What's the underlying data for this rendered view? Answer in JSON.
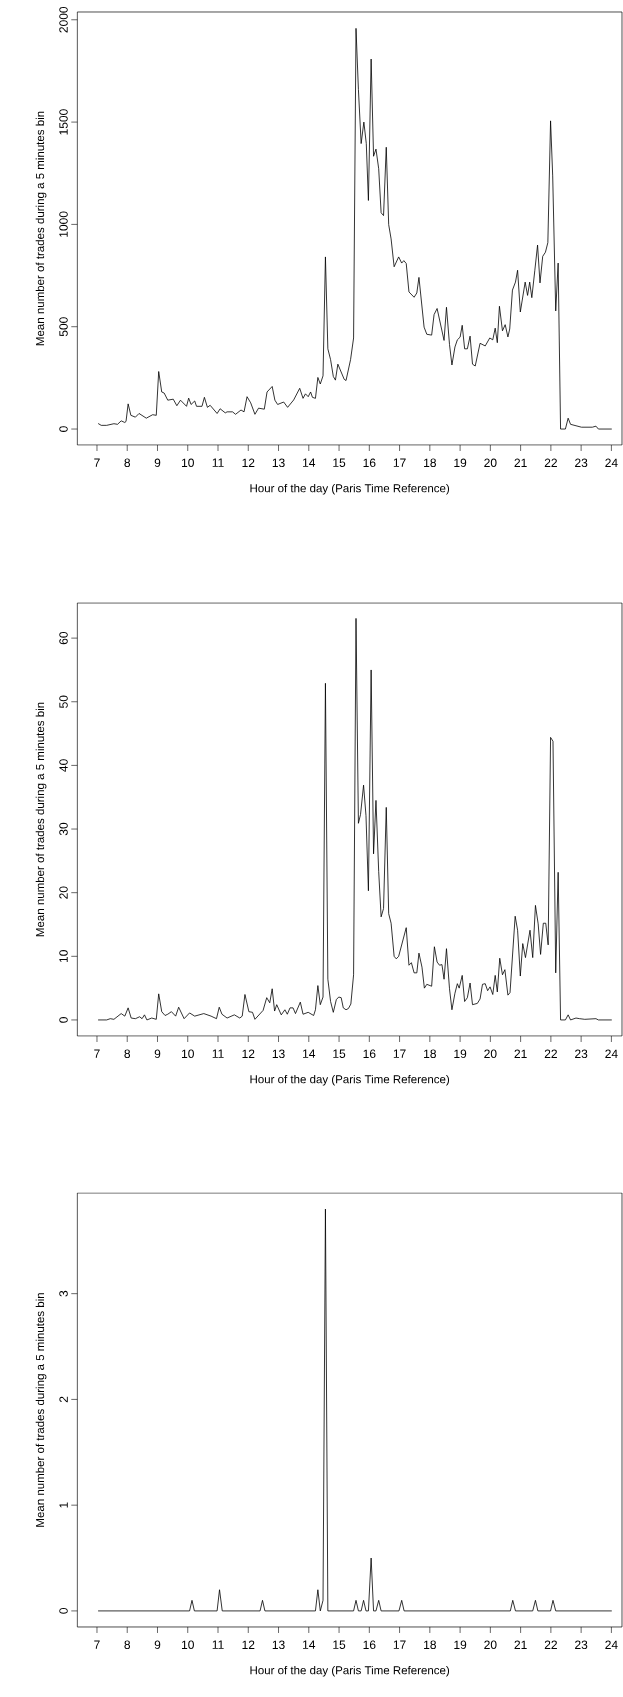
{
  "chart_data": [
    {
      "type": "line",
      "xlabel": "Hour of the day (Paris Time Reference)",
      "ylabel": "Mean number of trades during a 5 minutes bin",
      "color": "#000000",
      "xlim": [
        6.35,
        24.35
      ],
      "ylim": [
        -78,
        2038
      ],
      "xticks": [
        7,
        8,
        9,
        10,
        11,
        12,
        13,
        14,
        15,
        16,
        17,
        18,
        19,
        20,
        21,
        22,
        23,
        24
      ],
      "yticks": [
        0,
        500,
        1000,
        1500,
        2000
      ],
      "x": [
        7.05,
        7.14,
        7.32,
        7.56,
        7.68,
        7.8,
        7.92,
        7.96,
        8.03,
        8.12,
        8.27,
        8.39,
        8.63,
        8.84,
        8.96,
        9.04,
        9.14,
        9.22,
        9.34,
        9.52,
        9.64,
        9.76,
        9.96,
        10.03,
        10.11,
        10.23,
        10.29,
        10.47,
        10.55,
        10.65,
        10.74,
        10.97,
        11.07,
        11.24,
        11.3,
        11.48,
        11.58,
        11.76,
        11.86,
        11.96,
        12.08,
        12.22,
        12.34,
        12.53,
        12.62,
        12.79,
        12.88,
        12.97,
        13.17,
        13.3,
        13.5,
        13.7,
        13.81,
        13.89,
        13.98,
        14.06,
        14.12,
        14.22,
        14.3,
        14.38,
        14.47,
        14.55,
        14.63,
        14.72,
        14.81,
        14.88,
        14.96,
        15.17,
        15.23,
        15.38,
        15.48,
        15.56,
        15.64,
        15.73,
        15.82,
        15.9,
        15.97,
        16.06,
        16.14,
        16.22,
        16.31,
        16.39,
        16.47,
        16.56,
        16.64,
        16.72,
        16.82,
        16.97,
        17.07,
        17.14,
        17.22,
        17.31,
        17.48,
        17.57,
        17.64,
        17.81,
        17.9,
        18.06,
        18.14,
        18.24,
        18.47,
        18.55,
        18.65,
        18.73,
        18.83,
        18.91,
        19.0,
        19.07,
        19.15,
        19.24,
        19.33,
        19.41,
        19.5,
        19.66,
        19.83,
        19.98,
        20.08,
        20.16,
        20.23,
        20.3,
        20.4,
        20.49,
        20.58,
        20.64,
        20.73,
        20.83,
        20.9,
        20.99,
        21.15,
        21.23,
        21.3,
        21.37,
        21.47,
        21.56,
        21.64,
        21.73,
        21.82,
        21.9,
        21.99,
        22.06,
        22.16,
        22.24,
        22.32,
        22.48,
        22.57,
        22.65,
        23.01,
        23.37,
        23.49,
        23.57,
        24.0
      ],
      "values": [
        26,
        18,
        18,
        26,
        23,
        40,
        32,
        37,
        123,
        67,
        58,
        76,
        53,
        70,
        67,
        281,
        181,
        176,
        141,
        146,
        114,
        141,
        111,
        151,
        120,
        137,
        111,
        111,
        155,
        106,
        116,
        76,
        99,
        79,
        84,
        84,
        72,
        93,
        84,
        158,
        128,
        72,
        102,
        97,
        181,
        208,
        141,
        120,
        132,
        106,
        142,
        199,
        150,
        172,
        158,
        181,
        155,
        150,
        252,
        220,
        260,
        841,
        392,
        339,
        257,
        239,
        317,
        243,
        237,
        339,
        445,
        1958,
        1659,
        1395,
        1500,
        1395,
        1117,
        1808,
        1333,
        1368,
        1272,
        1057,
        1043,
        1377,
        999,
        929,
        793,
        841,
        811,
        823,
        809,
        670,
        644,
        665,
        741,
        498,
        463,
        459,
        559,
        589,
        433,
        595,
        413,
        313,
        401,
        436,
        449,
        507,
        392,
        392,
        454,
        317,
        308,
        419,
        406,
        445,
        436,
        493,
        422,
        600,
        480,
        510,
        450,
        489,
        679,
        718,
        776,
        572,
        718,
        653,
        718,
        642,
        776,
        899,
        714,
        844,
        864,
        911,
        1506,
        1237,
        577,
        811,
        0,
        0,
        53,
        23,
        9,
        9,
        14,
        0,
        0
      ]
    },
    {
      "type": "line",
      "xlabel": "Hour of the day (Paris Time Reference)",
      "ylabel": "Mean number of trades during a 5 minutes bin",
      "color": "#000000",
      "xlim": [
        6.35,
        24.35
      ],
      "ylim": [
        -2.52,
        65.52
      ],
      "xticks": [
        7,
        8,
        9,
        10,
        11,
        12,
        13,
        14,
        15,
        16,
        17,
        18,
        19,
        20,
        21,
        22,
        23,
        24
      ],
      "yticks": [
        0,
        10,
        20,
        30,
        40,
        50,
        60
      ],
      "x": [
        7.05,
        7.32,
        7.44,
        7.56,
        7.8,
        7.92,
        8.03,
        8.13,
        8.27,
        8.41,
        8.49,
        8.57,
        8.65,
        8.81,
        8.96,
        9.04,
        9.14,
        9.25,
        9.34,
        9.46,
        9.6,
        9.7,
        9.88,
        10.06,
        10.23,
        10.53,
        10.77,
        10.95,
        11.04,
        11.13,
        11.3,
        11.54,
        11.72,
        11.8,
        11.89,
        12.02,
        12.14,
        12.22,
        12.49,
        12.61,
        12.71,
        12.79,
        12.87,
        12.94,
        13.09,
        13.21,
        13.29,
        13.38,
        13.48,
        13.56,
        13.72,
        13.81,
        13.98,
        14.16,
        14.22,
        14.3,
        14.38,
        14.47,
        14.55,
        14.63,
        14.72,
        14.81,
        14.91,
        14.99,
        15.07,
        15.14,
        15.23,
        15.31,
        15.39,
        15.48,
        15.56,
        15.64,
        15.71,
        15.81,
        15.89,
        15.97,
        16.06,
        16.14,
        16.22,
        16.31,
        16.39,
        16.47,
        16.56,
        16.64,
        16.72,
        16.82,
        16.89,
        16.97,
        17.22,
        17.31,
        17.39,
        17.48,
        17.57,
        17.64,
        17.74,
        17.82,
        17.9,
        18.06,
        18.15,
        18.24,
        18.32,
        18.4,
        18.47,
        18.55,
        18.65,
        18.73,
        18.83,
        18.91,
        18.97,
        19.07,
        19.15,
        19.24,
        19.33,
        19.41,
        19.57,
        19.66,
        19.74,
        19.83,
        19.91,
        19.99,
        20.08,
        20.16,
        20.23,
        20.31,
        20.4,
        20.48,
        20.58,
        20.65,
        20.82,
        20.9,
        20.99,
        21.07,
        21.16,
        21.31,
        21.4,
        21.49,
        21.58,
        21.66,
        21.75,
        21.83,
        21.91,
        21.99,
        22.07,
        22.16,
        22.24,
        22.32,
        22.48,
        22.57,
        22.65,
        22.83,
        22.95,
        23.12,
        23.49,
        23.57,
        24.0
      ],
      "values": [
        0,
        0,
        0.2,
        0.1,
        1.0,
        0.6,
        1.9,
        0.3,
        0.2,
        0.5,
        0.2,
        0.8,
        0,
        0.3,
        0.1,
        4.1,
        1.3,
        0.7,
        0.9,
        1.3,
        0.6,
        2.0,
        0.2,
        1.1,
        0.6,
        1.0,
        0.6,
        0.2,
        2.0,
        0.9,
        0.3,
        0.8,
        0.3,
        0.6,
        4.0,
        1.3,
        1.2,
        0.1,
        1.5,
        3.5,
        2.7,
        4.9,
        1.4,
        2.4,
        0.8,
        1.6,
        0.9,
        1.9,
        1.9,
        1.0,
        2.8,
        0.9,
        1.2,
        0.7,
        1.6,
        5.4,
        2.4,
        3.6,
        52.9,
        6.4,
        2.9,
        1.2,
        3.2,
        3.6,
        3.5,
        1.9,
        1.6,
        1.8,
        2.5,
        7.1,
        63.1,
        30.9,
        32.3,
        36.9,
        32.1,
        20.3,
        55.0,
        26.1,
        34.5,
        23.3,
        16.2,
        17.5,
        33.4,
        16.7,
        15.2,
        10.0,
        9.6,
        10.0,
        14.5,
        8.6,
        9.0,
        7.4,
        7.4,
        10.5,
        8.3,
        5.0,
        5.6,
        5.3,
        11.5,
        9.1,
        8.6,
        8.7,
        6.4,
        11.2,
        4.9,
        1.6,
        4.2,
        5.7,
        5.0,
        7.0,
        2.9,
        3.5,
        5.8,
        2.4,
        2.6,
        3.3,
        5.6,
        5.7,
        4.6,
        5.2,
        4.0,
        7.0,
        4.4,
        9.7,
        7.1,
        7.9,
        3.9,
        4.3,
        16.3,
        14.1,
        6.9,
        12.0,
        9.8,
        14.1,
        9.8,
        18.0,
        15.1,
        10.3,
        15.2,
        15.2,
        11.8,
        44.4,
        43.8,
        7.4,
        23.2,
        0,
        0,
        0.8,
        0,
        0.3,
        0.2,
        0.1,
        0.2,
        0,
        0
      ]
    },
    {
      "type": "line",
      "xlabel": "Hour of the day (Paris Time Reference)",
      "ylabel": "Mean number of trades during a 5 minutes bin",
      "color": "#000000",
      "xlim": [
        6.35,
        24.35
      ],
      "ylim": [
        -0.152,
        3.952
      ],
      "xticks": [
        7,
        8,
        9,
        10,
        11,
        12,
        13,
        14,
        15,
        16,
        17,
        18,
        19,
        20,
        21,
        22,
        23,
        24
      ],
      "yticks": [
        0,
        1,
        2,
        3
      ],
      "x": [
        7.05,
        10.06,
        10.14,
        10.22,
        10.97,
        11.05,
        11.14,
        12.39,
        12.47,
        12.55,
        14.22,
        14.3,
        14.38,
        14.47,
        14.55,
        14.63,
        15.48,
        15.56,
        15.64,
        15.73,
        15.81,
        15.89,
        15.97,
        16.06,
        16.14,
        16.22,
        16.31,
        16.39,
        16.98,
        17.07,
        17.15,
        20.66,
        20.74,
        20.83,
        21.4,
        21.49,
        21.57,
        21.99,
        22.07,
        22.16,
        24.0
      ],
      "values": [
        0,
        0,
        0.1,
        0,
        0,
        0.2,
        0,
        0,
        0.1,
        0,
        0,
        0.2,
        0,
        0.1,
        3.8,
        0,
        0,
        0.1,
        0,
        0,
        0.1,
        0,
        0,
        0.5,
        0,
        0,
        0.1,
        0,
        0,
        0.1,
        0,
        0,
        0.1,
        0,
        0,
        0.1,
        0,
        0,
        0.1,
        0,
        0
      ]
    }
  ]
}
